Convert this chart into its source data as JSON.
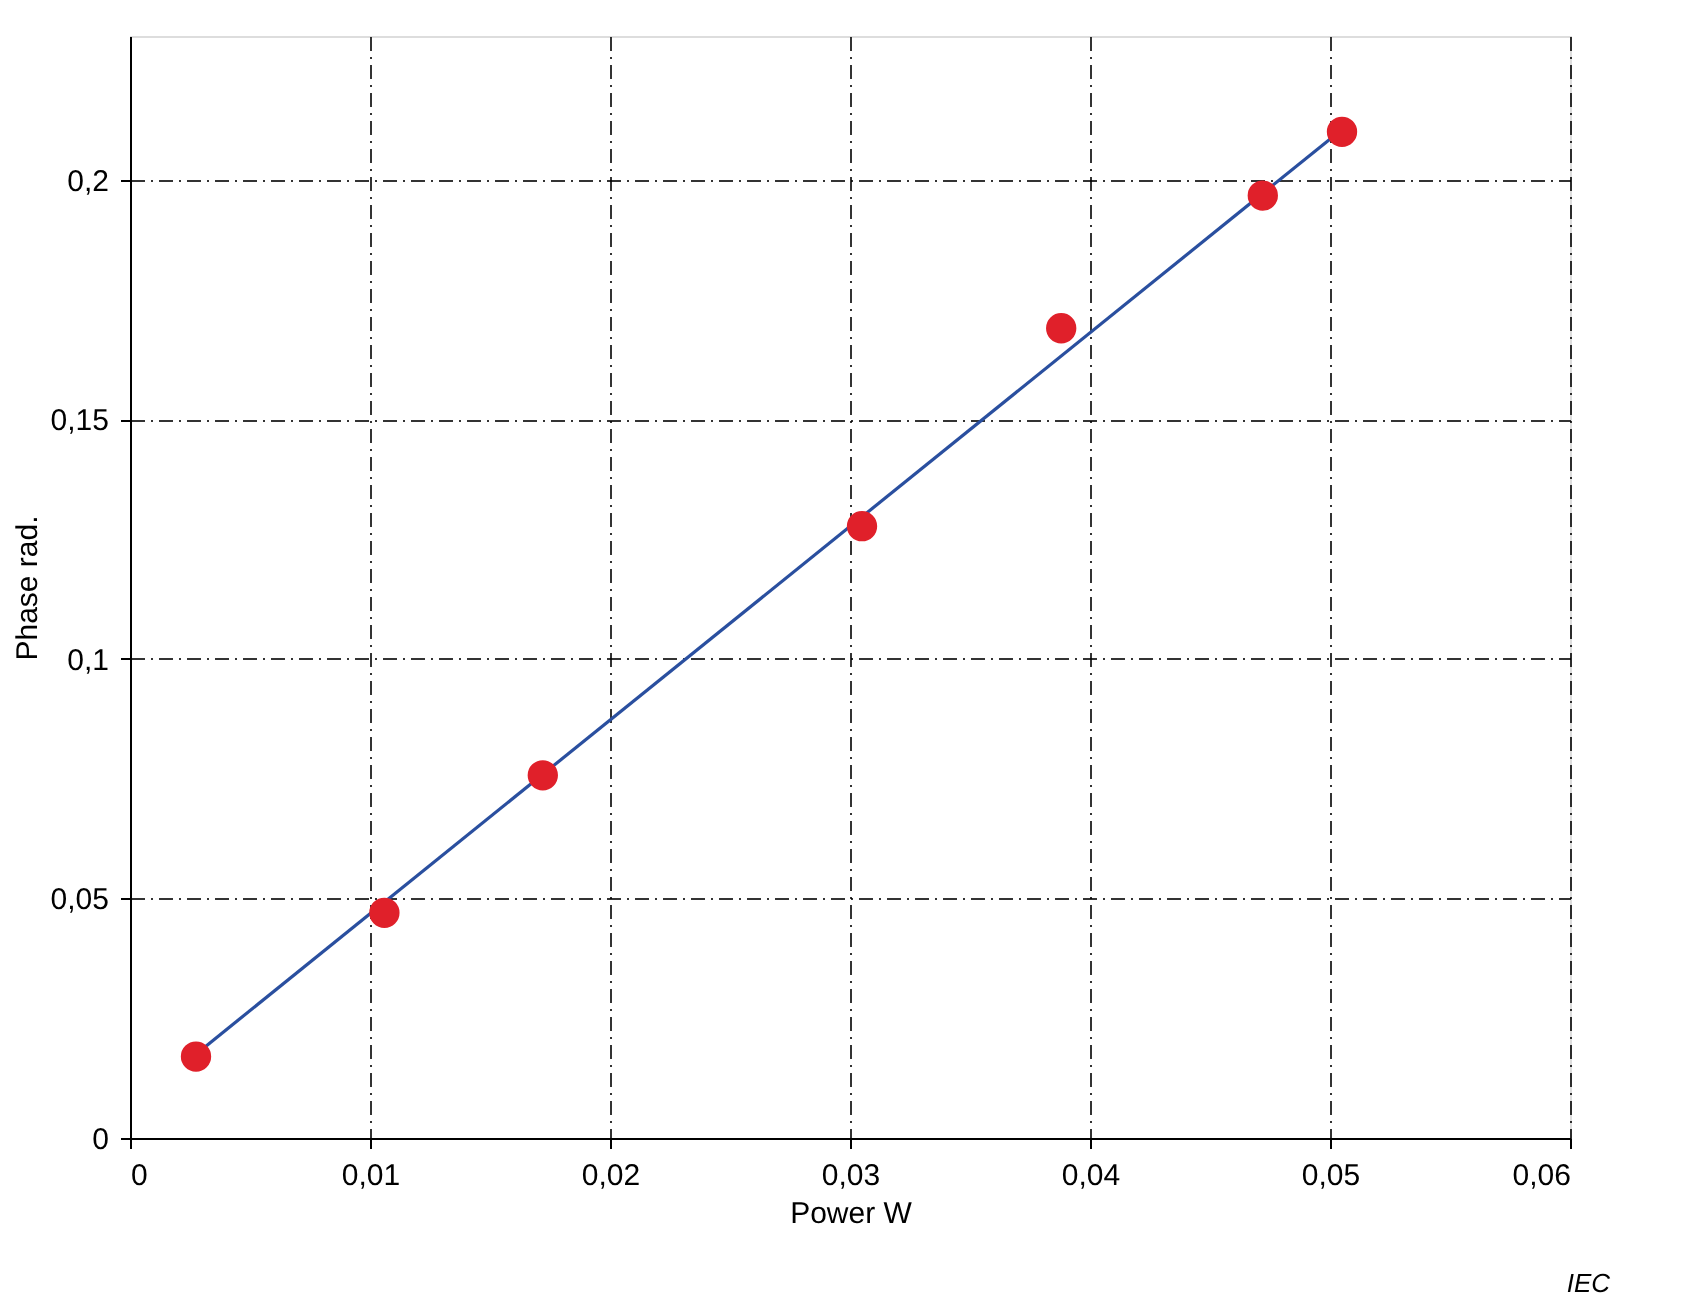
{
  "chart_data": {
    "type": "scatter",
    "xlabel": "Power  W",
    "ylabel": "Phase  rad.",
    "x": [
      0.00275,
      0.0106,
      0.0172,
      0.0305,
      0.0388,
      0.0472,
      0.0505
    ],
    "series": [
      {
        "color": "#e0202a",
        "marker": "circle",
        "values": [
          0.017,
          0.047,
          0.0757,
          0.1277,
          0.169,
          0.1967,
          0.21
        ]
      },
      {
        "type": "line",
        "color": "#2a4f9f",
        "line_style": "solid",
        "marker": "none",
        "x": [
          0.00275,
          0.0505
        ],
        "values": [
          0.0175,
          0.2105
        ]
      }
    ],
    "xlim": [
      0,
      0.06
    ],
    "xticks": [
      0,
      {
        "value": 0.01,
        "label": "0,01"
      },
      {
        "value": 0.02,
        "label": "0,02"
      },
      {
        "value": 0.03,
        "label": "0,03"
      },
      {
        "value": 0.04,
        "label": "0,04"
      },
      {
        "value": 0.05,
        "label": "0,05"
      },
      {
        "value": 0.06,
        "label": "0,06"
      }
    ],
    "ylim": [
      0,
      0.23
    ],
    "yticks": [
      0,
      {
        "value": 0.05,
        "label": "0,05"
      },
      {
        "value": 0.1,
        "label": "0,1"
      },
      {
        "value": 0.15,
        "label": "0,15"
      },
      {
        "value": 0.2,
        "label": "0,2"
      }
    ],
    "grid": true,
    "annotations": [
      "IEC"
    ]
  }
}
